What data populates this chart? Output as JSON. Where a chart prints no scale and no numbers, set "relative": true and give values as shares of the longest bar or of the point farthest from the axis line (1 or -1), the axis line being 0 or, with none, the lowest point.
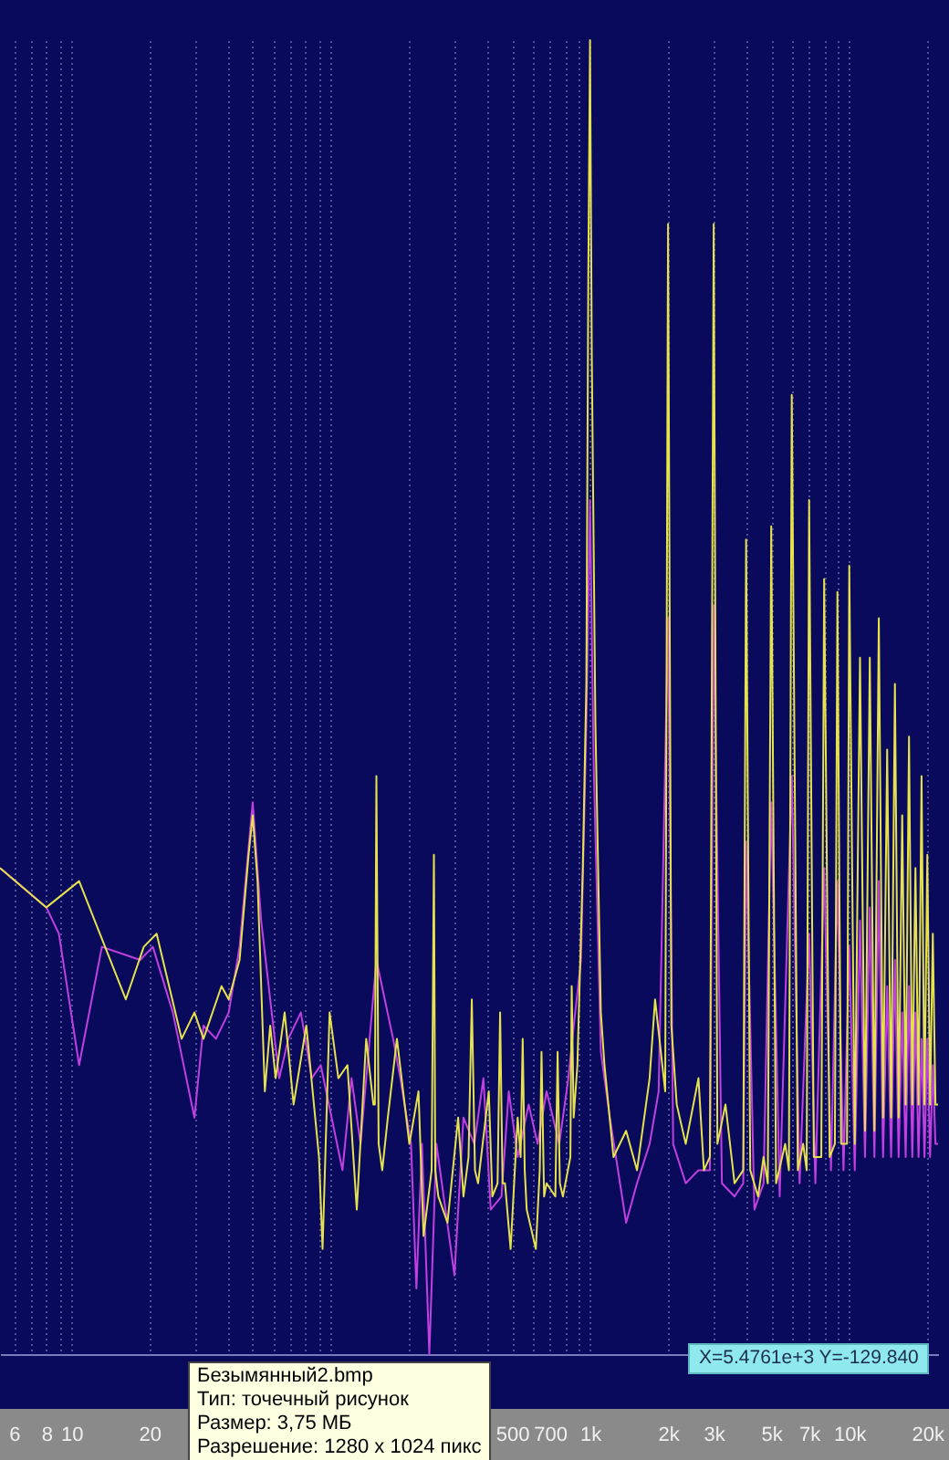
{
  "chart_data": {
    "type": "line",
    "relative": true,
    "log": "x",
    "grid": "x",
    "xlim": [
      5.3,
      22000
    ],
    "xticks": [
      6,
      {
        "value": 7,
        "label": null
      },
      8,
      {
        "value": 9,
        "label": null
      },
      10,
      20,
      {
        "value": 30,
        "label": null
      },
      {
        "value": 40,
        "label": null
      },
      {
        "value": 50,
        "label": null
      },
      {
        "value": 60,
        "label": null
      },
      {
        "value": 70,
        "label": null
      },
      {
        "value": 80,
        "label": null
      },
      {
        "value": 90,
        "label": null
      },
      {
        "value": 100,
        "label": null
      },
      {
        "value": 200,
        "label": null
      },
      {
        "value": 300,
        "label": null
      },
      {
        "value": 400,
        "label": null
      },
      500,
      {
        "value": 600,
        "label": null
      },
      700,
      {
        "value": 800,
        "label": null
      },
      {
        "value": 900,
        "label": null
      },
      {
        "value": 1000,
        "label": "1k"
      },
      {
        "value": 2000,
        "label": "2k"
      },
      {
        "value": 3000,
        "label": "3k"
      },
      {
        "value": 4000,
        "label": null
      },
      {
        "value": 5000,
        "label": "5k"
      },
      {
        "value": 6000,
        "label": null
      },
      {
        "value": 7000,
        "label": "7k"
      },
      {
        "value": 8000,
        "label": null
      },
      {
        "value": 9000,
        "label": null
      },
      {
        "value": 10000,
        "label": "10k"
      },
      {
        "value": 20000,
        "label": "20k"
      }
    ],
    "series": [
      {
        "color": "#c040e0",
        "x": [
          5.3,
          8,
          8.94,
          10.7,
          13.1,
          18.4,
          20.6,
          24.6,
          29.8,
          32.3,
          36.1,
          40.4,
          44.5,
          50,
          53.9,
          58.4,
          63.3,
          68.6,
          76.7,
          84.5,
          91.5,
          111,
          120.3,
          130.3,
          150,
          174,
          185.5,
          204,
          214,
          224.8,
          240,
          255.6,
          277,
          300,
          325,
          358,
          388,
          414,
          455.6,
          486,
          526,
          580,
          628,
          680,
          761,
          825,
          865.6,
          923,
          968,
          1000,
          1033,
          1101,
          1193,
          1378,
          1518,
          1698,
          1840,
          2000,
          2093,
          2340,
          2620,
          2900,
          3000,
          3227,
          3610,
          3900,
          4000,
          4306,
          4670,
          5000,
          5390,
          6000,
          6432,
          7000,
          7400,
          8000,
          8500,
          9000,
          9500,
          10000,
          10500,
          11000,
          11500,
          12000,
          12500,
          13000,
          13500,
          14000,
          14500,
          15000,
          15500,
          16000,
          16500,
          17000,
          17500,
          18000,
          18500,
          19000,
          19500,
          20000,
          20500,
          21000,
          21500,
          22000
        ],
        "values": [
          0.37,
          0.34,
          0.32,
          0.22,
          0.31,
          0.3,
          0.31,
          0.26,
          0.18,
          0.25,
          0.24,
          0.26,
          0.31,
          0.42,
          0.33,
          0.27,
          0.21,
          0.24,
          0.26,
          0.21,
          0.22,
          0.14,
          0.21,
          0.16,
          0.3,
          0.24,
          0.21,
          0.16,
          0.05,
          0.16,
          0,
          0.16,
          0.11,
          0.06,
          0.18,
          0.16,
          0.21,
          0.11,
          0.12,
          0.2,
          0.15,
          0.19,
          0.16,
          0.2,
          0.16,
          0.21,
          0.25,
          0.3,
          0.48,
          0.65,
          0.45,
          0.23,
          0.18,
          0.1,
          0.13,
          0.16,
          0.2,
          0.56,
          0.16,
          0.13,
          0.14,
          0.14,
          0.57,
          0.13,
          0.12,
          0.13,
          0.39,
          0.11,
          0.13,
          0.42,
          0.12,
          0.44,
          0.13,
          0.32,
          0.13,
          0.37,
          0.14,
          0.36,
          0.14,
          0.31,
          0.14,
          0.33,
          0.15,
          0.34,
          0.15,
          0.36,
          0.15,
          0.28,
          0.15,
          0.3,
          0.15,
          0.26,
          0.15,
          0.28,
          0.15,
          0.26,
          0.15,
          0.24,
          0.15,
          0.24,
          0.15,
          0.22,
          0.16,
          0.16
        ]
      },
      {
        "color": "#e6e24e",
        "x": [
          5.3,
          8,
          10.7,
          16.2,
          19,
          21.3,
          26.6,
          29.8,
          32.3,
          37.9,
          40.4,
          44.5,
          48.2,
          50,
          52.2,
          55.7,
          58.4,
          61.3,
          66.4,
          71.9,
          80.5,
          90.1,
          93,
          99,
          107,
          116,
          126,
          137,
          146,
          148,
          150,
          153,
          158,
          166,
          180,
          201,
          218,
          228,
          245,
          250,
          253,
          260,
          282,
          310,
          325,
          340,
          350,
          360,
          370,
          407,
          420,
          440,
          450,
          460,
          470,
          494,
          526,
          540,
          550,
          560,
          570,
          618,
          640,
          650,
          665,
          680,
          735,
          750,
          765,
          786,
          840,
          850,
          865,
          894,
          938,
          968,
          985,
          1000,
          1016,
          1049,
          1101,
          1137,
          1232,
          1378,
          1518,
          1698,
          1782,
          1900,
          1950,
          2000,
          2060,
          2160,
          2340,
          2620,
          2750,
          2900,
          3000,
          3100,
          3330,
          3610,
          3900,
          4000,
          4150,
          4450,
          4670,
          4850,
          5000,
          5220,
          5660,
          5850,
          6000,
          6330,
          6640,
          6850,
          7000,
          7300,
          7800,
          8000,
          8400,
          8800,
          9000,
          9300,
          9800,
          10000,
          10500,
          11000,
          11500,
          12000,
          12500,
          13000,
          13500,
          14000,
          14500,
          15000,
          15500,
          16000,
          16500,
          17000,
          17500,
          18000,
          18500,
          19000,
          19500,
          20000,
          20500,
          21000,
          21500,
          22000
        ],
        "values": [
          0.37,
          0.34,
          0.36,
          0.27,
          0.31,
          0.32,
          0.24,
          0.26,
          0.24,
          0.28,
          0.27,
          0.3,
          0.38,
          0.41,
          0.36,
          0.2,
          0.25,
          0.21,
          0.26,
          0.19,
          0.25,
          0.15,
          0.08,
          0.26,
          0.21,
          0.22,
          0.11,
          0.24,
          0.19,
          0.19,
          0.44,
          0.16,
          0.14,
          0.18,
          0.24,
          0.16,
          0.2,
          0.09,
          0.14,
          0.38,
          0.14,
          0.12,
          0.1,
          0.18,
          0.12,
          0.15,
          0.27,
          0.14,
          0.13,
          0.2,
          0.12,
          0.13,
          0.26,
          0.13,
          0.13,
          0.08,
          0.18,
          0.15,
          0.24,
          0.14,
          0.11,
          0.08,
          0.14,
          0.23,
          0.12,
          0.13,
          0.12,
          0.23,
          0.13,
          0.12,
          0.15,
          0.28,
          0.18,
          0.22,
          0.37,
          0.51,
          0.82,
          1,
          0.76,
          0.48,
          0.26,
          0.22,
          0.15,
          0.17,
          0.14,
          0.21,
          0.27,
          0.22,
          0.2,
          0.86,
          0.25,
          0.19,
          0.16,
          0.21,
          0.14,
          0.15,
          0.86,
          0.16,
          0.19,
          0.13,
          0.14,
          0.62,
          0.14,
          0.12,
          0.15,
          0.13,
          0.63,
          0.13,
          0.16,
          0.14,
          0.73,
          0.14,
          0.16,
          0.14,
          0.65,
          0.15,
          0.15,
          0.59,
          0.15,
          0.16,
          0.58,
          0.16,
          0.16,
          0.6,
          0.16,
          0.53,
          0.17,
          0.53,
          0.17,
          0.56,
          0.18,
          0.46,
          0.18,
          0.51,
          0.18,
          0.41,
          0.19,
          0.47,
          0.19,
          0.37,
          0.19,
          0.44,
          0.19,
          0.38,
          0.19,
          0.32,
          0.19,
          0.19
        ]
      }
    ],
    "annotations": [
      "X=5.4761e+3  Y=-129.840",
      "Безымянный2.bmp",
      "Тип: точечный рисунок",
      "Размер: 3,75 МБ",
      "Разрешение: 1280 x 1024 пикс"
    ]
  }
}
